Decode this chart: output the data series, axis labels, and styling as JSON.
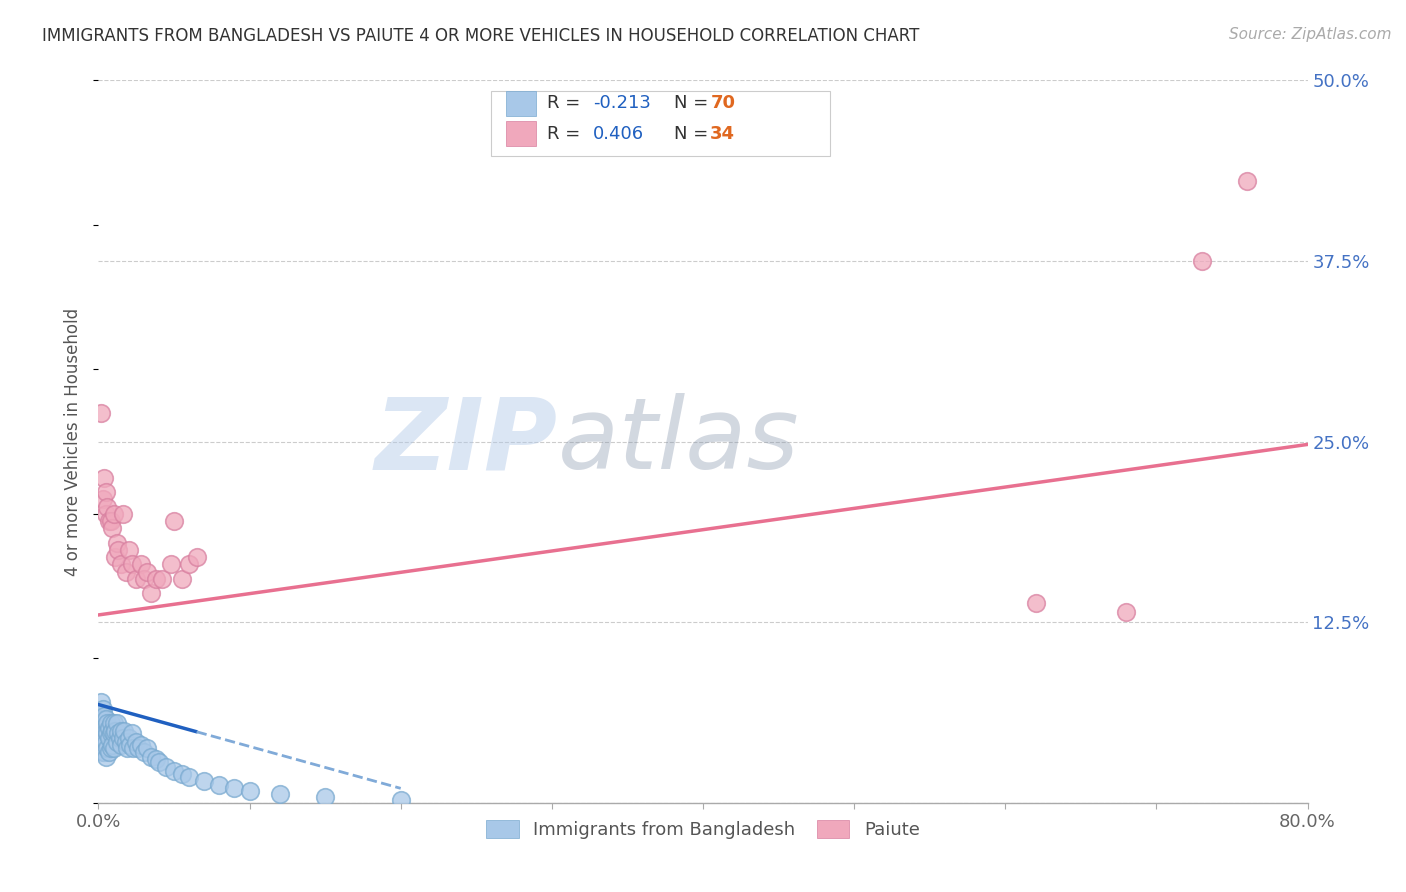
{
  "title": "IMMIGRANTS FROM BANGLADESH VS PAIUTE 4 OR MORE VEHICLES IN HOUSEHOLD CORRELATION CHART",
  "source": "Source: ZipAtlas.com",
  "ylabel": "4 or more Vehicles in Household",
  "xlim": [
    0.0,
    0.8
  ],
  "ylim": [
    0.0,
    0.5
  ],
  "xticks": [
    0.0,
    0.1,
    0.2,
    0.3,
    0.4,
    0.5,
    0.6,
    0.7,
    0.8
  ],
  "xticklabels": [
    "0.0%",
    "",
    "",
    "",
    "",
    "",
    "",
    "",
    "80.0%"
  ],
  "ytick_positions": [
    0.0,
    0.125,
    0.25,
    0.375,
    0.5
  ],
  "yticklabels": [
    "",
    "12.5%",
    "25.0%",
    "37.5%",
    "50.0%"
  ],
  "color_bangladesh": "#a8c8e8",
  "color_bangladesh_edge": "#7aaad0",
  "color_paiute": "#f0a8bc",
  "color_paiute_edge": "#d880a0",
  "color_blue_line": "#2060c0",
  "color_blue_dash": "#80aad8",
  "color_pink_line": "#e87090",
  "color_r_val": "#2060c0",
  "color_n_val": "#e06820",
  "watermark_color": "#c8d8f0",
  "background_color": "#ffffff",
  "bangladesh_x": [
    0.001,
    0.001,
    0.001,
    0.001,
    0.002,
    0.002,
    0.002,
    0.002,
    0.002,
    0.003,
    0.003,
    0.003,
    0.003,
    0.003,
    0.004,
    0.004,
    0.004,
    0.004,
    0.005,
    0.005,
    0.005,
    0.005,
    0.006,
    0.006,
    0.006,
    0.007,
    0.007,
    0.007,
    0.008,
    0.008,
    0.008,
    0.009,
    0.009,
    0.01,
    0.01,
    0.01,
    0.011,
    0.012,
    0.012,
    0.013,
    0.014,
    0.015,
    0.015,
    0.016,
    0.017,
    0.018,
    0.019,
    0.02,
    0.021,
    0.022,
    0.023,
    0.025,
    0.026,
    0.028,
    0.03,
    0.032,
    0.035,
    0.038,
    0.04,
    0.045,
    0.05,
    0.055,
    0.06,
    0.07,
    0.08,
    0.09,
    0.1,
    0.12,
    0.15,
    0.2
  ],
  "bangladesh_y": [
    0.06,
    0.055,
    0.048,
    0.04,
    0.07,
    0.062,
    0.055,
    0.045,
    0.038,
    0.065,
    0.058,
    0.05,
    0.042,
    0.035,
    0.06,
    0.052,
    0.045,
    0.035,
    0.058,
    0.05,
    0.042,
    0.032,
    0.055,
    0.048,
    0.038,
    0.052,
    0.045,
    0.035,
    0.055,
    0.048,
    0.038,
    0.05,
    0.04,
    0.055,
    0.048,
    0.038,
    0.05,
    0.055,
    0.042,
    0.048,
    0.045,
    0.05,
    0.04,
    0.045,
    0.05,
    0.042,
    0.038,
    0.045,
    0.04,
    0.048,
    0.038,
    0.042,
    0.038,
    0.04,
    0.035,
    0.038,
    0.032,
    0.03,
    0.028,
    0.025,
    0.022,
    0.02,
    0.018,
    0.015,
    0.012,
    0.01,
    0.008,
    0.006,
    0.004,
    0.002
  ],
  "paiute_x": [
    0.002,
    0.003,
    0.004,
    0.005,
    0.005,
    0.006,
    0.007,
    0.008,
    0.009,
    0.01,
    0.011,
    0.012,
    0.013,
    0.015,
    0.016,
    0.018,
    0.02,
    0.022,
    0.025,
    0.028,
    0.03,
    0.032,
    0.035,
    0.038,
    0.042,
    0.048,
    0.05,
    0.055,
    0.06,
    0.065,
    0.62,
    0.68,
    0.73,
    0.76
  ],
  "paiute_y": [
    0.27,
    0.21,
    0.225,
    0.215,
    0.2,
    0.205,
    0.195,
    0.195,
    0.19,
    0.2,
    0.17,
    0.18,
    0.175,
    0.165,
    0.2,
    0.16,
    0.175,
    0.165,
    0.155,
    0.165,
    0.155,
    0.16,
    0.145,
    0.155,
    0.155,
    0.165,
    0.195,
    0.155,
    0.165,
    0.17,
    0.138,
    0.132,
    0.375,
    0.43
  ],
  "trendline_bangladesh_x0": 0.0,
  "trendline_bangladesh_y0": 0.068,
  "trendline_bangladesh_x1": 0.2,
  "trendline_bangladesh_y1": 0.01,
  "trendline_bangladesh_solid_end": 0.065,
  "trendline_paiute_x0": 0.0,
  "trendline_paiute_y0": 0.13,
  "trendline_paiute_x1": 0.8,
  "trendline_paiute_y1": 0.248
}
